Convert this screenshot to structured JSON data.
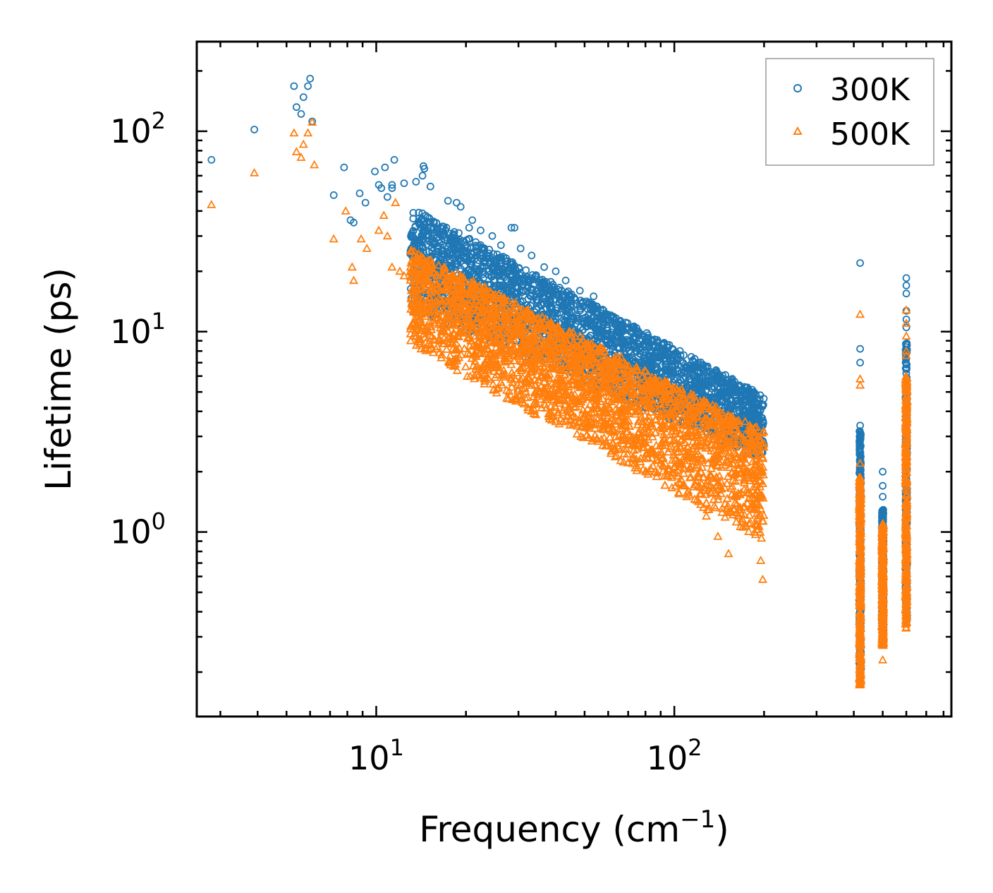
{
  "chart_data": {
    "type": "scatter",
    "xscale": "log",
    "yscale": "log",
    "xlabel": "Frequency (cm",
    "xlabel_sup": "−1",
    "xlabel_end": ")",
    "ylabel": "Lifetime (ps)",
    "xlim": [
      2.5,
      850
    ],
    "ylim": [
      0.12,
      280
    ],
    "xticks": [
      {
        "value": 10,
        "base": "10",
        "exp": "1"
      },
      {
        "value": 100,
        "base": "10",
        "exp": "2"
      }
    ],
    "yticks": [
      {
        "value": 1,
        "base": "10",
        "exp": "0"
      },
      {
        "value": 10,
        "base": "10",
        "exp": "1"
      },
      {
        "value": 100,
        "base": "10",
        "exp": "2"
      }
    ],
    "legend": {
      "position": "top-right"
    },
    "series": [
      {
        "name": "300K",
        "marker": "circle",
        "color": "#1f77b4",
        "points": [
          [
            2.8,
            72
          ],
          [
            3.9,
            102
          ],
          [
            5.3,
            168
          ],
          [
            5.4,
            132
          ],
          [
            5.7,
            148
          ],
          [
            5.6,
            122
          ],
          [
            5.9,
            168
          ],
          [
            6.0,
            183
          ],
          [
            6.1,
            112
          ],
          [
            7.2,
            48
          ],
          [
            7.8,
            66
          ],
          [
            8.2,
            36
          ],
          [
            8.4,
            35
          ],
          [
            8.8,
            49
          ],
          [
            9.2,
            44
          ],
          [
            9.9,
            63
          ],
          [
            10.2,
            54
          ],
          [
            10.4,
            52
          ],
          [
            10.7,
            66
          ],
          [
            10.9,
            47
          ],
          [
            11.3,
            54
          ],
          [
            11.5,
            72
          ],
          [
            11.3,
            52
          ],
          [
            12.4,
            55
          ],
          [
            13.6,
            56
          ],
          [
            14.3,
            60
          ],
          [
            14.4,
            67
          ],
          [
            14.5,
            65
          ],
          [
            15.2,
            53
          ],
          [
            17.4,
            45
          ],
          [
            18.6,
            44
          ],
          [
            19.2,
            42
          ],
          [
            20.5,
            33
          ],
          [
            21.0,
            36
          ],
          [
            22.4,
            32
          ],
          [
            24.5,
            30
          ],
          [
            26.2,
            27
          ],
          [
            28.4,
            33
          ],
          [
            29.1,
            33
          ],
          [
            30.5,
            26
          ],
          [
            33.2,
            24
          ],
          [
            36.6,
            21
          ],
          [
            40.0,
            20
          ],
          [
            43.2,
            18
          ],
          [
            48.2,
            16
          ],
          [
            53.6,
            15
          ],
          [
            58.4,
            12
          ],
          [
            63.8,
            9.5
          ],
          [
            72.2,
            7.4
          ],
          [
            79.6,
            6.8
          ],
          [
            93.5,
            5.0
          ],
          [
            103.0,
            6.4
          ],
          [
            116.0,
            6.8
          ],
          [
            128.0,
            5.5
          ],
          [
            140.0,
            5.3
          ],
          [
            158.0,
            5.5
          ],
          [
            172.0,
            5.3
          ],
          [
            190.0,
            3.5
          ],
          [
            198.0,
            3.4
          ],
          [
            420.0,
            22
          ],
          [
            420.0,
            8.2
          ],
          [
            420.0,
            7.0
          ],
          [
            420.0,
            3.4
          ],
          [
            420.0,
            2.9
          ],
          [
            500.0,
            2.0
          ],
          [
            500.0,
            1.7
          ],
          [
            500.0,
            1.5
          ],
          [
            600.0,
            18.5
          ],
          [
            600.0,
            17
          ],
          [
            600.0,
            15.5
          ],
          [
            600.0,
            12.7
          ],
          [
            600.0,
            11.5
          ],
          [
            600.0,
            10.5
          ],
          [
            600.0,
            6.5
          ]
        ],
        "bands": [
          {
            "x": [
              13.0,
              200.0
            ],
            "lower_y": [
              13,
              2.3
            ],
            "upper_y": [
              42,
              4.8
            ]
          },
          {
            "x_center": 420.0,
            "spread": 0.012,
            "lower_y": [
              0.18
            ],
            "upper_y": [
              3.2
            ]
          },
          {
            "x_center": 500.0,
            "spread": 0.012,
            "lower_y": [
              0.31
            ],
            "upper_y": [
              1.3
            ]
          },
          {
            "x_center": 600.0,
            "spread": 0.012,
            "lower_y": [
              0.35
            ],
            "upper_y": [
              9.0
            ]
          }
        ]
      },
      {
        "name": "500K",
        "marker": "triangle",
        "color": "#ff7f0e",
        "points": [
          [
            2.8,
            43
          ],
          [
            3.9,
            62
          ],
          [
            5.3,
            98
          ],
          [
            5.4,
            79
          ],
          [
            5.6,
            74
          ],
          [
            5.7,
            86
          ],
          [
            5.9,
            98
          ],
          [
            6.1,
            111
          ],
          [
            6.2,
            68
          ],
          [
            7.2,
            29
          ],
          [
            7.9,
            40
          ],
          [
            8.3,
            21
          ],
          [
            8.4,
            18
          ],
          [
            8.9,
            29
          ],
          [
            9.3,
            26
          ],
          [
            10.2,
            32
          ],
          [
            10.6,
            38
          ],
          [
            10.9,
            30
          ],
          [
            11.3,
            21
          ],
          [
            11.6,
            44
          ],
          [
            12.0,
            20
          ],
          [
            12.4,
            19
          ],
          [
            13.4,
            13
          ],
          [
            14.2,
            12.2
          ],
          [
            15.1,
            11.2
          ],
          [
            16.3,
            13
          ],
          [
            17.4,
            10
          ],
          [
            18.8,
            11.5
          ],
          [
            20.6,
            8.5
          ],
          [
            22.4,
            7.8
          ],
          [
            24.2,
            6.8
          ],
          [
            26.5,
            6.2
          ],
          [
            29.2,
            5.8
          ],
          [
            32.0,
            5.6
          ],
          [
            37.4,
            5.2
          ],
          [
            43.5,
            4.8
          ],
          [
            51.5,
            3.8
          ],
          [
            56.8,
            3.6
          ],
          [
            63.0,
            2.6
          ],
          [
            72.0,
            2.2
          ],
          [
            82.0,
            2.0
          ],
          [
            95.0,
            1.9
          ],
          [
            110.0,
            1.5
          ],
          [
            128.0,
            1.2
          ],
          [
            140.0,
            0.95
          ],
          [
            152.0,
            0.78
          ],
          [
            178.0,
            1.1
          ],
          [
            195.0,
            0.72
          ],
          [
            198.0,
            0.58
          ],
          [
            420.0,
            12.2
          ],
          [
            420.0,
            5.8
          ],
          [
            420.0,
            5.4
          ],
          [
            420.0,
            2.2
          ],
          [
            500.0,
            0.3
          ],
          [
            500.0,
            0.23
          ],
          [
            600.0,
            12.8
          ],
          [
            600.0,
            11.0
          ],
          [
            600.0,
            9.5
          ],
          [
            600.0,
            8.0
          ],
          [
            600.0,
            7.6
          ]
        ],
        "bands": [
          {
            "x": [
              13.0,
              200.0
            ],
            "lower_y": [
              8.5,
              0.9
            ],
            "upper_y": [
              26,
              3.2
            ]
          },
          {
            "x_center": 420.0,
            "spread": 0.012,
            "lower_y": [
              0.17
            ],
            "upper_y": [
              1.9
            ]
          },
          {
            "x_center": 500.0,
            "spread": 0.012,
            "lower_y": [
              0.27
            ],
            "upper_y": [
              1.1
            ]
          },
          {
            "x_center": 600.0,
            "spread": 0.012,
            "lower_y": [
              0.33
            ],
            "upper_y": [
              6.0
            ]
          }
        ]
      }
    ]
  }
}
